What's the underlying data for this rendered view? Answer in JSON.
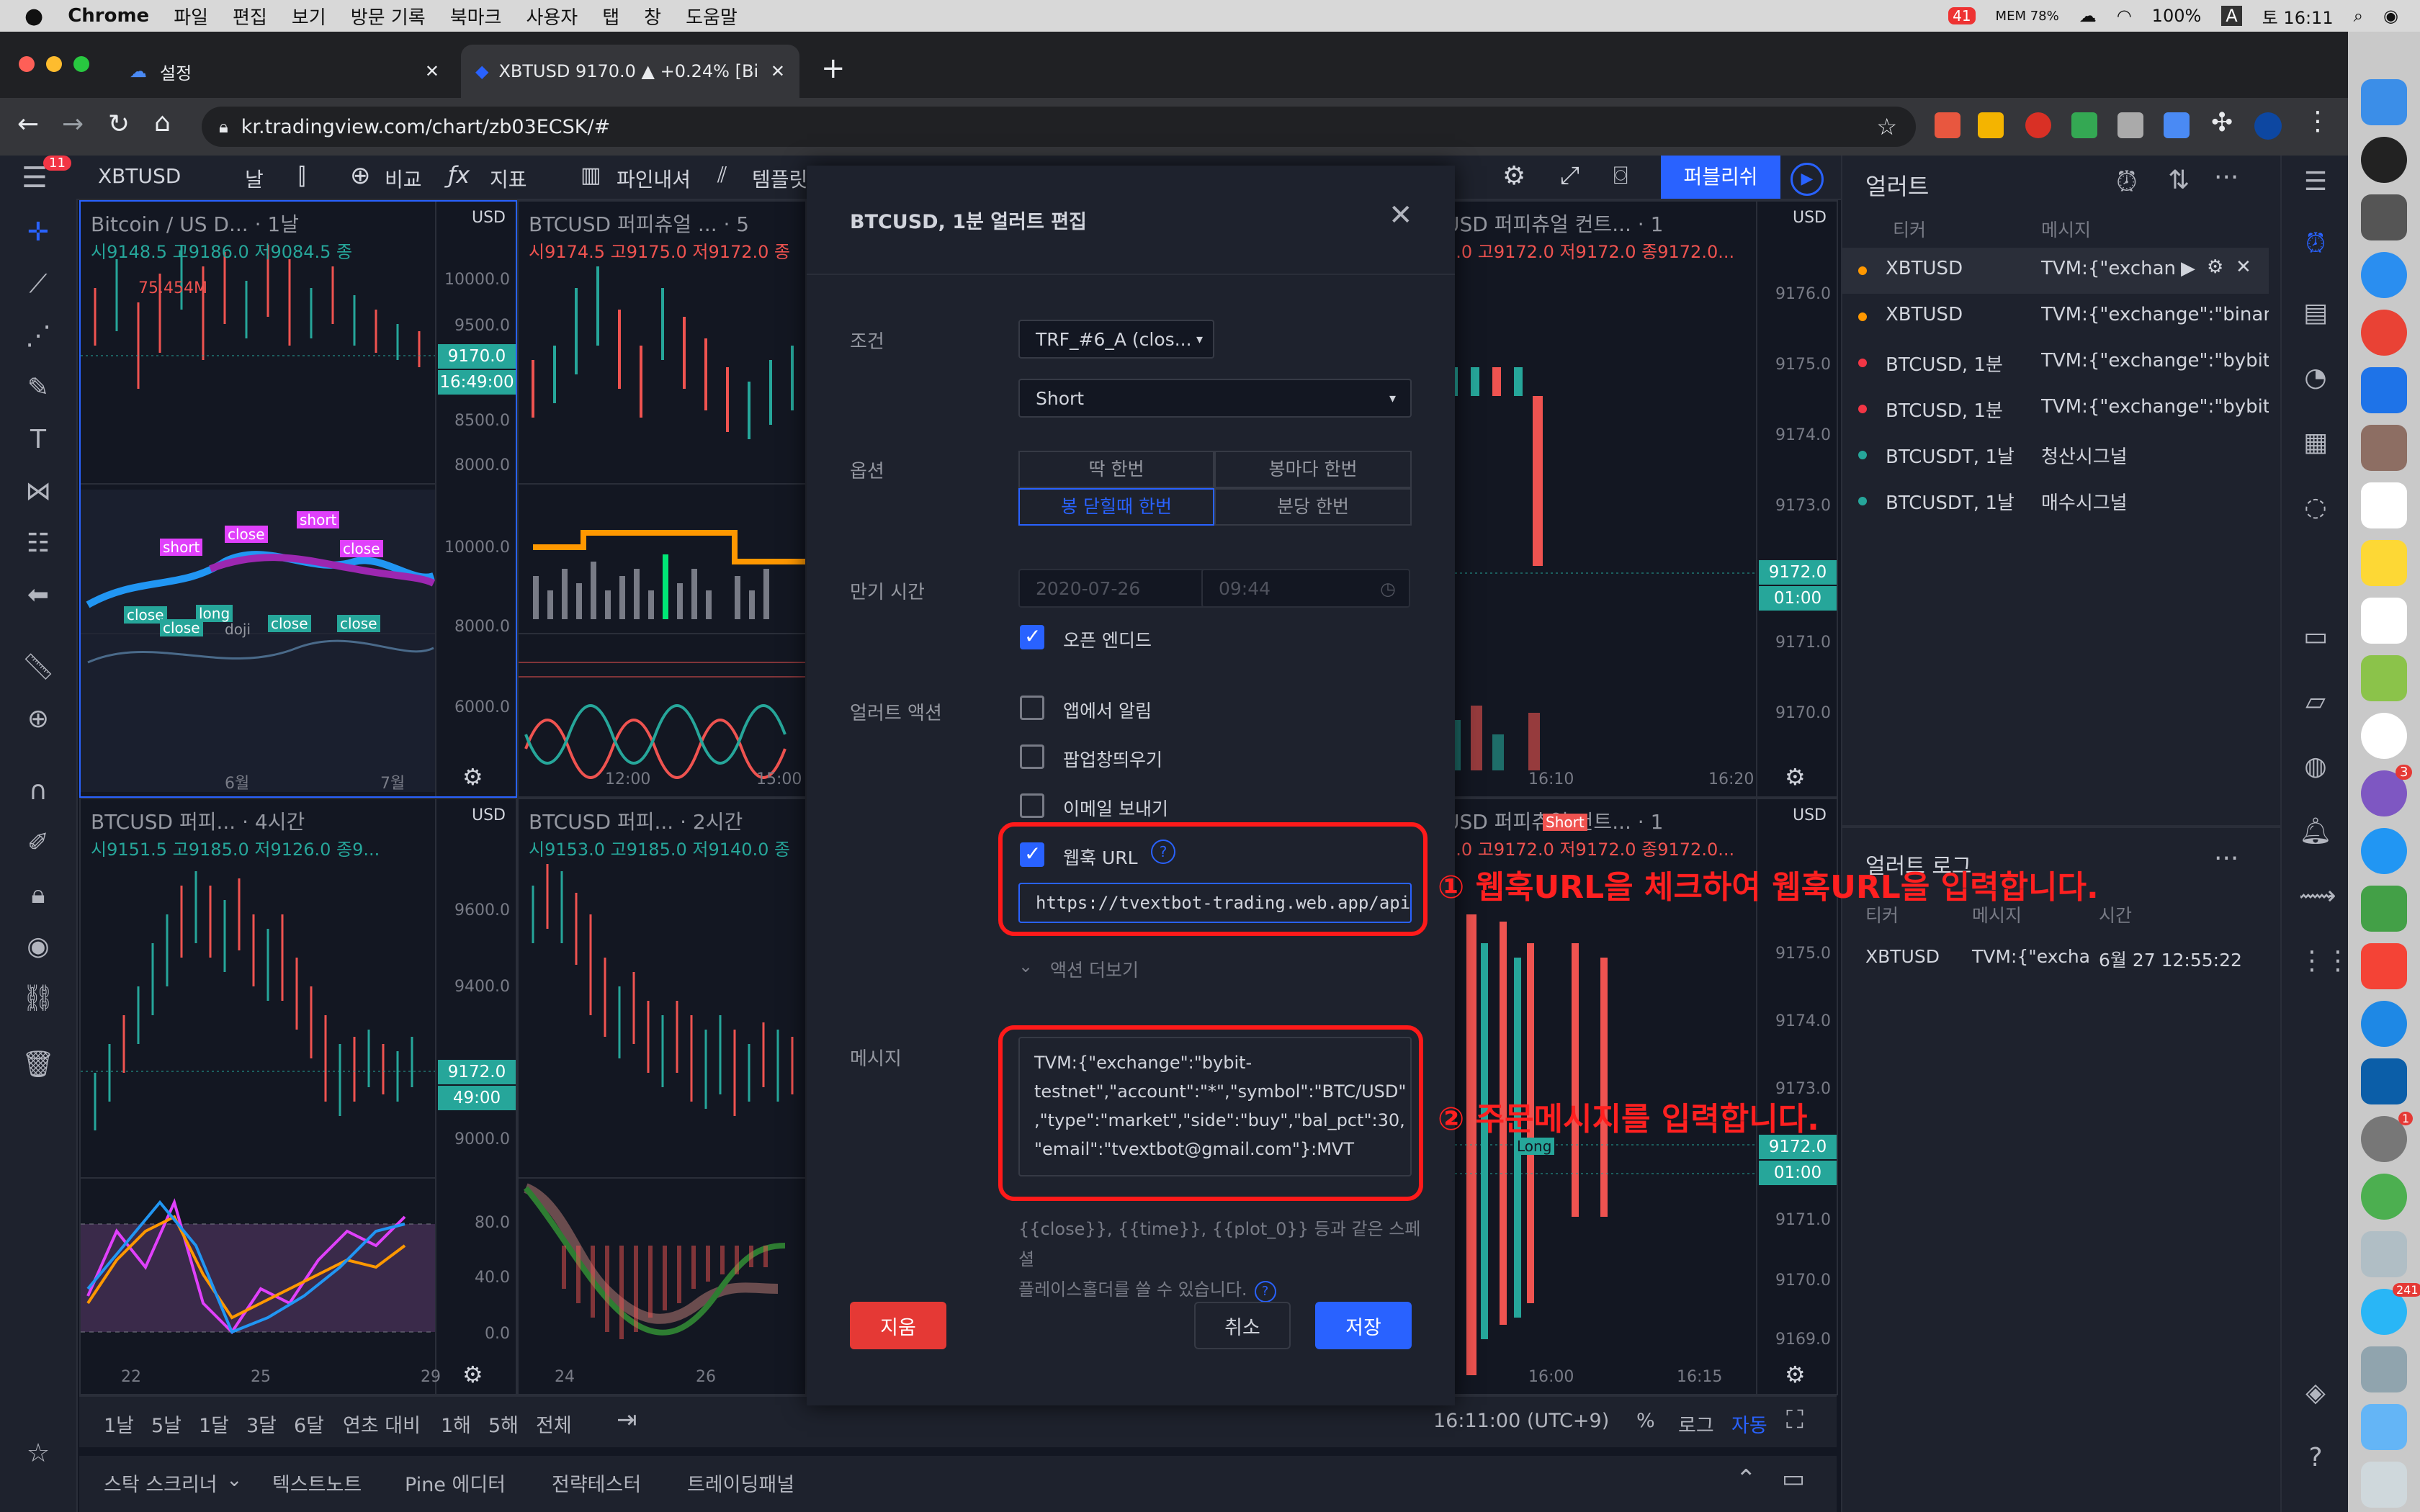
{
  "menubar": {
    "app": "Chrome",
    "items": [
      "파일",
      "편집",
      "보기",
      "방문 기록",
      "북마크",
      "사용자",
      "탭",
      "창",
      "도움말"
    ],
    "battery": "100%",
    "clock": "토 16:11",
    "mem": "MEM 78%",
    "badge": "41"
  },
  "tabs": [
    {
      "label": "설정"
    },
    {
      "label": "XBTUSD 9170.0 ▲ +0.24% [Bi"
    }
  ],
  "address": {
    "url": "kr.tradingview.com/chart/zb03ECSK/#"
  },
  "tv_toolbar": {
    "badge": "11",
    "symbol": "XBTUSD",
    "interval": "날",
    "compare": "비교",
    "indicators": "지표",
    "pinescript": "파인내셔",
    "templates": "템플릿",
    "publish": "퍼블리쉬"
  },
  "charts": [
    {
      "title": "Bitcoin / US D... · 1날",
      "ohlc": "시9148.5 고9186.0 저9084.5 종",
      "vol": "75.454M",
      "prices": [
        "10000.0",
        "9500.0",
        "9170.0",
        "8500.0",
        "8000.0",
        "10000.0",
        "8000.0",
        "6000.0"
      ],
      "tag": "9170.0",
      "tag2": "16:49:00",
      "xaxis": [
        "6월",
        "7월"
      ],
      "labels": [
        "short",
        "close",
        "short",
        "close",
        "long",
        "close",
        "close",
        "doji",
        "close",
        "close"
      ]
    },
    {
      "title": "BTCUSD 퍼피츄얼 ... · 5",
      "ohlc": "시9174.5 고9175.0 저9172.0 종",
      "xaxis": [
        "12:00",
        "15:00"
      ]
    },
    {
      "title": "USD 퍼피츄얼 컨트... · 1",
      "ohlc": "2.0 고9172.0 저9172.0 종9172.0...",
      "prices": [
        "9176.0",
        "9175.0",
        "9174.0",
        "9173.0",
        "9172.0",
        "9171.0",
        "9170.0"
      ],
      "tag": "9172.0",
      "tag2": "01:00",
      "xaxis": [
        "16:10",
        "16:20"
      ]
    },
    {
      "title": "BTCUSD 퍼피... · 4시간",
      "ohlc": "시9151.5 고9185.0 저9126.0 종9...",
      "prices": [
        "9600.0",
        "9400.0",
        "9172.0",
        "9000.0",
        "80.0",
        "40.0",
        "0.0"
      ],
      "tag": "9172.0",
      "tag2": "49:00",
      "xaxis": [
        "22",
        "25",
        "29"
      ]
    },
    {
      "title": "BTCUSD 퍼피... · 2시간",
      "ohlc": "시9153.0 고9185.0 저9140.0 종",
      "xaxis": [
        "24",
        "26"
      ]
    },
    {
      "title": "USD 퍼피츄얼 컨트... · 1",
      "ohlc": "2.0 고9172.0 저9172.0 종9172.0...",
      "prices": [
        "9175.0",
        "9174.0",
        "9173.0",
        "9172.0",
        "9171.0",
        "9170.0",
        "9169.0"
      ],
      "tag": "9172.0",
      "tag2": "01:00",
      "xaxis": [
        "16:00",
        "16:15"
      ],
      "flag_short": "Short",
      "flag_long": "Long"
    }
  ],
  "usd": "USD",
  "modal": {
    "title": "BTCUSD, 1분 얼러트 편집",
    "condition_label": "조건",
    "condition_value": "TRF_#6_A (clos...",
    "condition2_value": "Short",
    "options_label": "옵션",
    "opt1": "딱 한번",
    "opt2": "봉마다 한번",
    "opt3": "봉 닫힐때 한번",
    "opt4": "분당 한번",
    "expire_label": "만기 시간",
    "expire_date": "2020-07-26",
    "expire_time": "09:44",
    "open_ended": "오픈 엔디드",
    "actions_label": "얼러트 액션",
    "act1": "앱에서 알림",
    "act2": "팝업창띄우기",
    "act3": "이메일 보내기",
    "act4": "웹훅 URL",
    "webhook_url": "https://tvextbot-trading.web.app/api/we",
    "more": "액션 더보기",
    "message_label": "메시지",
    "message_lines": [
      "TVM:{\"exchange\":\"bybit-",
      "testnet\",\"account\":\"*\",\"symbol\":\"BTC/USD\"",
      ",\"type\":\"market\",\"side\":\"buy\",\"bal_pct\":30,",
      "\"email\":\"tvextbot@gmail.com\"}:MVT"
    ],
    "hint1": "{{close}}, {{time}}, {{plot_0}} 등과 같은 스페셜",
    "hint2": "플레이스홀더를 쓸 수 있습니다.",
    "delete": "지움",
    "cancel": "취소",
    "save": "저장"
  },
  "annotations": {
    "a1": "① 웹훅URL을 체크하여 웹훅URL을 입력합니다.",
    "a2": "② 주문메시지를 입력합니다."
  },
  "alerts": {
    "title": "얼러트",
    "col_ticker": "티커",
    "col_message": "메시지",
    "rows": [
      {
        "ticker": "XBTUSD",
        "message": "TVM:{\"exchan",
        "color": "#ff9800"
      },
      {
        "ticker": "XBTUSD",
        "message": "TVM:{\"exchange\":\"binanc",
        "color": "#ff9800"
      },
      {
        "ticker": "BTCUSD, 1분",
        "message": "TVM:{\"exchange\":\"bybit-",
        "color": "#f23645"
      },
      {
        "ticker": "BTCUSD, 1분",
        "message": "TVM:{\"exchange\":\"bybit-",
        "color": "#f23645"
      },
      {
        "ticker": "BTCUSDT, 1날",
        "message": "청산시그널",
        "color": "#26a69a"
      },
      {
        "ticker": "BTCUSDT, 1날",
        "message": "매수시그널",
        "color": "#26a69a"
      }
    ],
    "log_title": "얼러트 로그",
    "log_col_ticker": "티커",
    "log_col_message": "메시지",
    "log_col_time": "시간",
    "log_row": {
      "ticker": "XBTUSD",
      "message": "TVM:{\"excha",
      "time": "6월 27 12:55:22"
    }
  },
  "bottom": {
    "ranges": [
      "1날",
      "5날",
      "1달",
      "3달",
      "6달",
      "연초 대비",
      "1해",
      "5해",
      "전체"
    ],
    "time": "16:11:00 (UTC+9)",
    "pct": "%",
    "log": "로그",
    "auto": "자동",
    "tabs": [
      "스탁 스크리너",
      "텍스트노트",
      "Pine 에디터",
      "전략테스터",
      "트레이딩패널"
    ]
  },
  "dock_badges": [
    "3",
    "241",
    "1"
  ]
}
